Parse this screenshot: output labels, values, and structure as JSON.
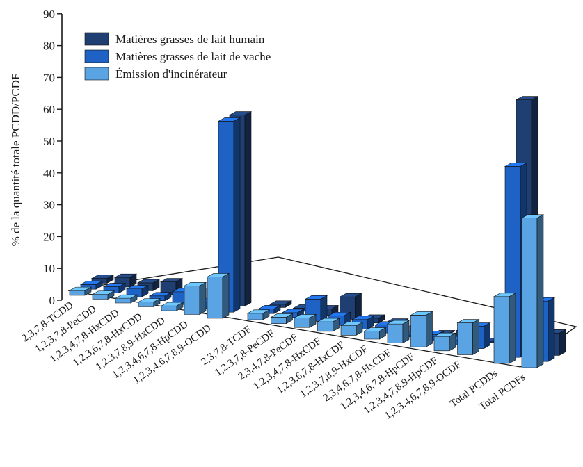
{
  "chart_data": {
    "type": "bar",
    "title": "",
    "xlabel": "",
    "ylabel": "% de la quantité totale PCDD/PCDF",
    "ylim": [
      0,
      90
    ],
    "yticks": [
      0,
      10,
      20,
      30,
      40,
      50,
      60,
      70,
      80,
      90
    ],
    "legend_position": "top-left",
    "grid": false,
    "categories": [
      "2,3,7,8-TCDD",
      "1,2,3,7,8-PeCDD",
      "1,2,3,4,7,8-HxCDD",
      "1,2,3,6,7,8-HxCDD",
      "1,2,3,7,8,9-HxCDD",
      "1,2,3,4,6,7,8-HpCDD",
      "1,2,3,4,6,7,8,9-OCDD",
      "2,3,7,8-TCDF",
      "1,2,3,7,8-PeCDF",
      "2,3,4,7,8-PeCDF",
      "1,2,3,4,7,8-HxCDF",
      "1,2,3,6,7,8-HxCDF",
      "1,2,3,7,8,9-HxCDF",
      "2,3,4,6,7,8-HxCDF",
      "1,2,3,4,6,7,8-HpCDF",
      "1,2,3,4,7,8,9-HpCDF",
      "1,2,3,4,6,7,8,9-OCDF",
      "Total PCDDs",
      "Total PCDFs"
    ],
    "series": [
      {
        "name": "Matières grasses de lait humain",
        "color": "#1f3f73",
        "values": [
          1.5,
          3.0,
          2.5,
          4.0,
          1.5,
          4.5,
          60.0,
          1.0,
          1.0,
          2.0,
          7.0,
          1.5,
          1.5,
          1.5,
          0.0,
          2.5,
          0.0,
          79.0,
          7.0
        ]
      },
      {
        "name": "Matières grasses de lait de vache",
        "color": "#1d62c4",
        "values": [
          1.5,
          2.0,
          2.5,
          1.5,
          4.0,
          2.0,
          60.0,
          1.5,
          1.5,
          7.0,
          3.0,
          3.0,
          2.5,
          0.5,
          2.0,
          1.5,
          7.0,
          60.0,
          19.0
        ]
      },
      {
        "name": "Émission d'incinérateur",
        "color": "#5aa4e4",
        "values": [
          1.5,
          1.5,
          1.5,
          1.5,
          1.5,
          9.0,
          13.0,
          2.0,
          2.0,
          3.0,
          3.0,
          3.0,
          2.5,
          6.0,
          10.0,
          4.5,
          10.0,
          21.0,
          47.0
        ]
      }
    ]
  }
}
